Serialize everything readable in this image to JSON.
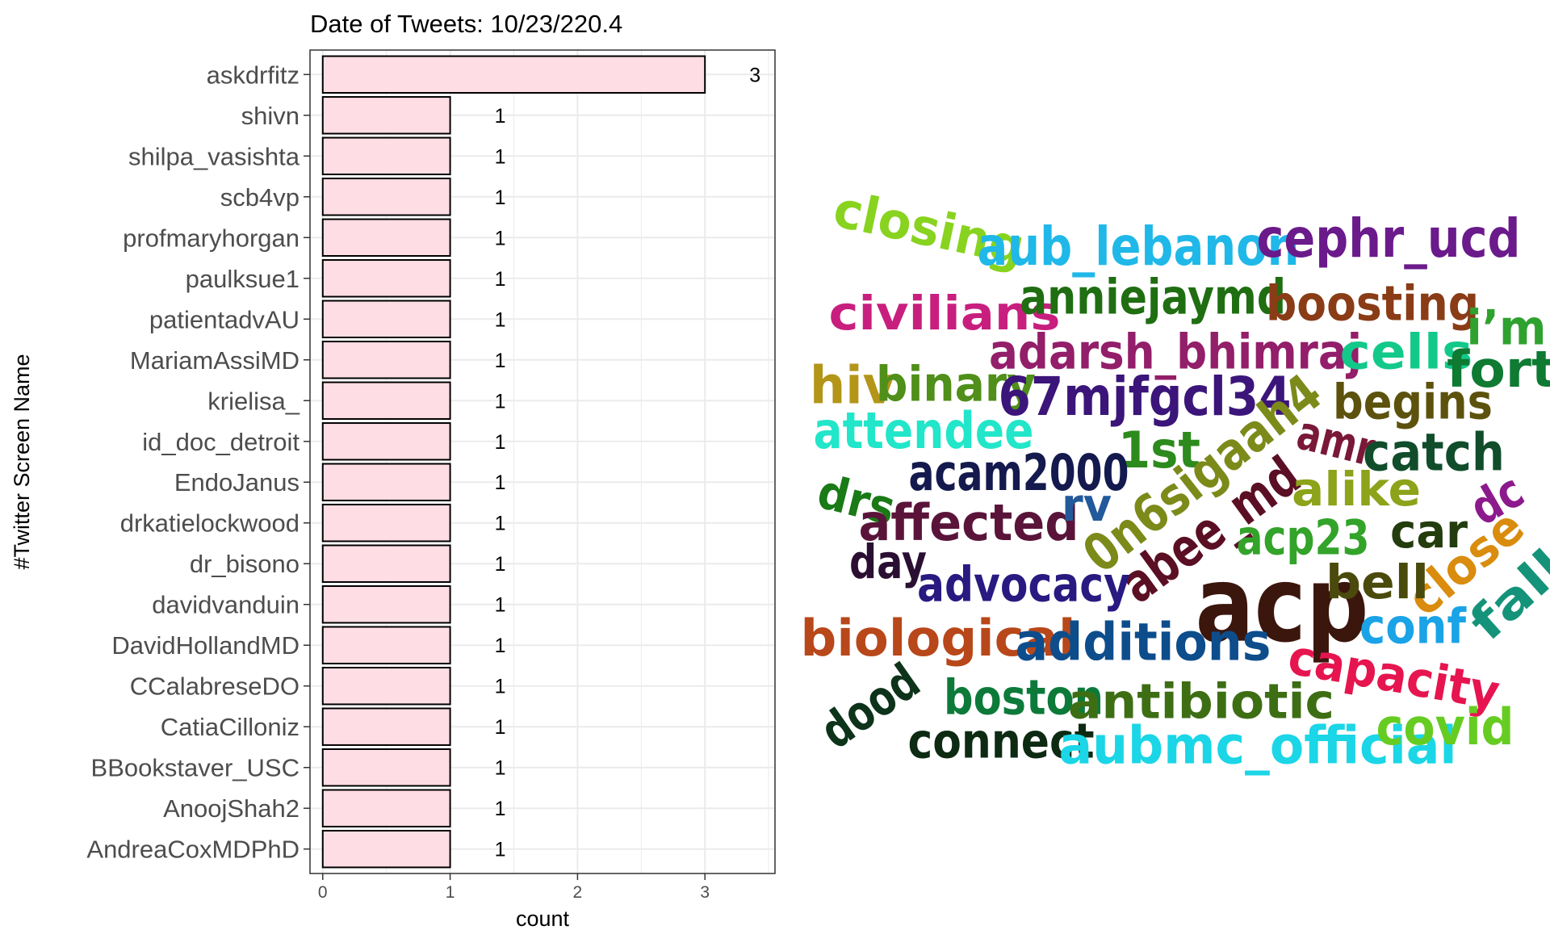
{
  "chart_data": [
    {
      "type": "bar",
      "orientation": "horizontal",
      "title": "Date of Tweets: 10/23/220.4",
      "xlabel": "count",
      "ylabel": "#Twitter Screen Name",
      "xlim": [
        -0.1,
        3.55
      ],
      "xticks": [
        "0",
        "1",
        "2",
        "3"
      ],
      "grid": true,
      "categories": [
        "askdrfitz",
        "shivn",
        "shilpa_vasishta",
        "scb4vp",
        "profmaryhorgan",
        "paulksue1",
        "patientadvAU",
        "MariamAssiMD",
        "krielisa_",
        "id_doc_detroit",
        "EndoJanus",
        "drkatielockwood",
        "dr_bisono",
        "davidvanduin",
        "DavidHollandMD",
        "CCalabreseDO",
        "CatiaCilloniz",
        "BBookstaver_USC",
        "AnoojShah2",
        "AndreaCoxMDPhD"
      ],
      "values": [
        3,
        1,
        1,
        1,
        1,
        1,
        1,
        1,
        1,
        1,
        1,
        1,
        1,
        1,
        1,
        1,
        1,
        1,
        1,
        1
      ],
      "value_labels": [
        "3",
        "1",
        "1",
        "1",
        "1",
        "1",
        "1",
        "1",
        "1",
        "1",
        "1",
        "1",
        "1",
        "1",
        "1",
        "1",
        "1",
        "1",
        "1",
        "1"
      ],
      "colors": {
        "bar_fill": "#ffdde4",
        "bar_stroke": "#000000",
        "grid": "#ebebeb",
        "panel_border": "#333333"
      }
    },
    {
      "type": "wordcloud",
      "words": [
        {
          "text": "acp",
          "color": "#3b160d"
        },
        {
          "text": "closing",
          "color": "#88d31f"
        },
        {
          "text": "aub_lebanon",
          "color": "#1fb8e8"
        },
        {
          "text": "cephr_ucd",
          "color": "#6a1a8a"
        },
        {
          "text": "civilians",
          "color": "#c81f7f"
        },
        {
          "text": "anniejaymd",
          "color": "#1f6e12"
        },
        {
          "text": "boosting",
          "color": "#8a3c17"
        },
        {
          "text": "i’m",
          "color": "#2fa12f"
        },
        {
          "text": "adarsh_bhimraj",
          "color": "#931e6a"
        },
        {
          "text": "cells",
          "color": "#12c98a"
        },
        {
          "text": "fort",
          "color": "#0e7a32"
        },
        {
          "text": "hiv",
          "color": "#b39518"
        },
        {
          "text": "binary",
          "color": "#4f8f1a"
        },
        {
          "text": "67mjfgcl34",
          "color": "#3b157a"
        },
        {
          "text": "begins",
          "color": "#5c520d"
        },
        {
          "text": "attendee",
          "color": "#22e6c9"
        },
        {
          "text": "1st",
          "color": "#2d8a1d"
        },
        {
          "text": "0n6sigaah4",
          "color": "#7c8a1a"
        },
        {
          "text": "amr",
          "color": "#7a1838"
        },
        {
          "text": "catch",
          "color": "#114d2b"
        },
        {
          "text": "acam2000",
          "color": "#141a4d"
        },
        {
          "text": "drs",
          "color": "#197a16"
        },
        {
          "text": "affected",
          "color": "#5a143a"
        },
        {
          "text": "rv",
          "color": "#22599a"
        },
        {
          "text": "abee_md",
          "color": "#5b0f24"
        },
        {
          "text": "alike",
          "color": "#8ca31a"
        },
        {
          "text": "acp23",
          "color": "#33a32a"
        },
        {
          "text": "car",
          "color": "#233d0e"
        },
        {
          "text": "dc",
          "color": "#8c1a8c"
        },
        {
          "text": "day",
          "color": "#2a0f33"
        },
        {
          "text": "advocacy",
          "color": "#281a80"
        },
        {
          "text": "close",
          "color": "#d98c0d"
        },
        {
          "text": "bell",
          "color": "#4a4a0d"
        },
        {
          "text": "fall",
          "color": "#14937a"
        },
        {
          "text": "biological",
          "color": "#b8471a"
        },
        {
          "text": "additions",
          "color": "#0d4d8c"
        },
        {
          "text": "conf",
          "color": "#1aa3e6"
        },
        {
          "text": "capacity",
          "color": "#e6154f"
        },
        {
          "text": "dood",
          "color": "#0d331a"
        },
        {
          "text": "boston",
          "color": "#0d7a3a"
        },
        {
          "text": "antibiotic",
          "color": "#3d6e14"
        },
        {
          "text": "connect",
          "color": "#0d2a12"
        },
        {
          "text": "aubmc_official",
          "color": "#1ad6e6"
        },
        {
          "text": "covid",
          "color": "#66cc22"
        }
      ]
    }
  ]
}
